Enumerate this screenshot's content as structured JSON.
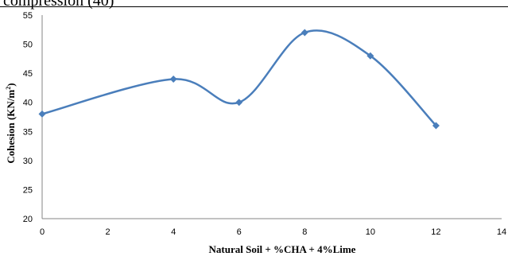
{
  "header_fragment": "compression (40)",
  "chart_data": {
    "type": "line",
    "title": "",
    "xlabel": "Natural Soil + %CHA + 4%Lime",
    "ylabel_main": "Cohesion (KN/m",
    "ylabel_sup": "2",
    "ylabel_end": ")",
    "x": [
      0,
      4,
      6,
      8,
      10,
      12
    ],
    "series": [
      {
        "values": [
          38,
          44,
          40,
          52,
          48,
          36
        ]
      }
    ],
    "xlim": [
      0,
      14
    ],
    "ylim": [
      20,
      55
    ],
    "xticks": [
      "0",
      "2",
      "4",
      "6",
      "8",
      "10",
      "12",
      "14"
    ],
    "yticks": [
      "20",
      "25",
      "30",
      "35",
      "40",
      "45",
      "50",
      "55"
    ],
    "grid": false,
    "legend": "none",
    "line_color": "#4a7ebb",
    "marker": "diamond"
  }
}
